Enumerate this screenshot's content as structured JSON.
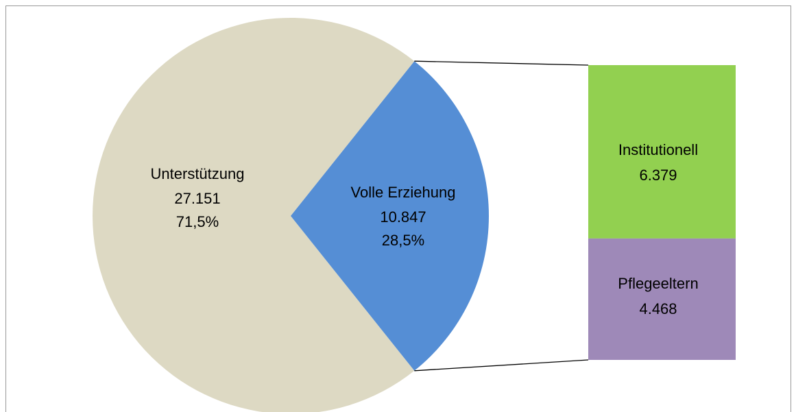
{
  "chart_data": {
    "type": "pie",
    "pie": {
      "categories": [
        "Unterstützung",
        "Volle Erziehung"
      ],
      "values": [
        27151,
        10847
      ],
      "value_labels": [
        "27.151",
        "10.847"
      ],
      "percents": [
        71.5,
        28.5
      ],
      "percent_labels": [
        "71,5%",
        "28,5%"
      ],
      "colors": [
        "#ddd9c3",
        "#558ed5"
      ]
    },
    "bar": {
      "categories": [
        "Institutionell",
        "Pflegeeltern"
      ],
      "values": [
        6379,
        4468
      ],
      "value_labels": [
        "6.379",
        "4.468"
      ],
      "colors": [
        "#92d050",
        "#9e89b8"
      ]
    }
  }
}
